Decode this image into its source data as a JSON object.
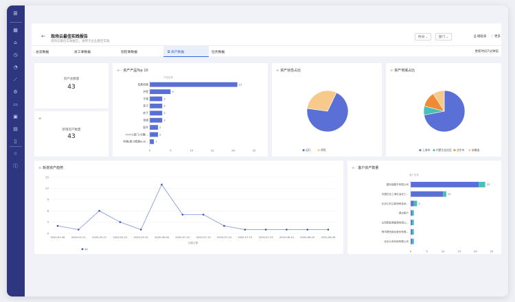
{
  "header": {
    "title": "现场云最佳实践报告",
    "subtitle": "现场云最佳实践报告，请用于企业最佳实践",
    "filters": [
      "时间",
      "部门"
    ],
    "actions": [
      "磁贴表",
      "更多"
    ]
  },
  "tabs": {
    "items": [
      "总览数据",
      "员工事数据",
      "巡检事数据",
      "资产数据",
      "任务数据"
    ],
    "active_index": 3,
    "right_text": "更新时间7分钟前"
  },
  "kpis": [
    {
      "label": "资产总数量",
      "value": "43"
    },
    {
      "label": "新增资产数量",
      "value": "43"
    }
  ],
  "colors": {
    "primary": "#5b70d6",
    "teal": "#4bbfb5",
    "orange": "#f08b35",
    "sand": "#f7c98b",
    "sidebar": "#2e3680"
  },
  "charts": {
    "top10": {
      "title": "资产产品Top 10",
      "axis_label": "产品名称",
      "chart_data": {
        "type": "bar",
        "orientation": "horizontal",
        "categories": [
          "投影机图",
          "护壁",
          "不锈",
          "抹子",
          "底子",
          "电梯",
          "配件",
          "TOTO(厦门)马桶I...",
          "料箱(意川精通KLDI..."
        ],
        "values": [
          21,
          5,
          3,
          3,
          3,
          3,
          2,
          2,
          1
        ],
        "xlim": [
          0,
          25
        ],
        "xticks": [
          0,
          5,
          10,
          15,
          20,
          25
        ]
      }
    },
    "status": {
      "title": "资产状态占比",
      "chart_data": {
        "type": "pie",
        "labels": [
          "运行",
          "停用"
        ],
        "values": [
          0.7,
          0.3
        ]
      }
    },
    "location": {
      "title": "资产地域占比",
      "chart_data": {
        "type": "pie",
        "labels": [
          "上海市",
          "内蒙古自治区",
          "北京市",
          "安徽省"
        ],
        "values": [
          0.72,
          0.07,
          0.12,
          0.09
        ]
      }
    },
    "trend": {
      "title": "新增资产趋势",
      "xlabel": "创建日期",
      "legend": "40",
      "chart_data": {
        "type": "line",
        "x": [
          "2020-01-08",
          "2020-02-21",
          "2020-05-21",
          "2020-05-22",
          "2020-05-25",
          "2020-06-26",
          "2020-07-10",
          "2020-07-13",
          "2020-07-14",
          "2020-07-15",
          "2020-07-23",
          "2020-08-14",
          "2020-08-25",
          "2020-08-26"
        ],
        "values": [
          2,
          1,
          6,
          3,
          1,
          13,
          5,
          5,
          2,
          1,
          1,
          1,
          1,
          1
        ],
        "ylim": [
          0,
          15
        ],
        "yticks": [
          0,
          3,
          6,
          9,
          12,
          15
        ]
      }
    },
    "customers": {
      "title": "客户资产数量",
      "axis_label": "客户名称",
      "chart_data": {
        "type": "bar",
        "orientation": "horizontal",
        "stacked": true,
        "categories": [
          "国际钢建东有限公司",
          "中国石化上海石油化工...",
          "北京汇科立新特种技术...",
          "湖北客户",
          "山西新能源能源有限公...",
          "神华蒙西煤业股份有限...",
          "北京大本利用有限公司"
        ],
        "series": [
          {
            "values": [
              21,
              10,
              1,
              0.5,
              0.5,
              0.5,
              0.5
            ]
          },
          {
            "values": [
              2,
              1,
              1,
              0.5,
              0.5,
              0.5,
              0.5
            ]
          }
        ],
        "totals": [
          23,
          11,
          2,
          1,
          1,
          1,
          1
        ],
        "xlim": [
          0,
          25
        ],
        "xticks": [
          0,
          5,
          10,
          15,
          20,
          25
        ]
      }
    }
  }
}
